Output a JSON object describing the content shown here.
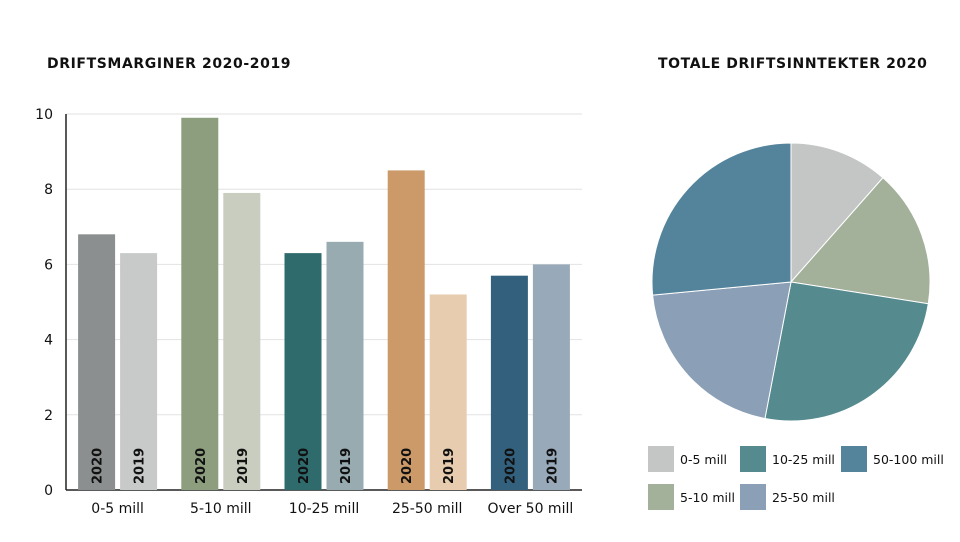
{
  "chart_data": [
    {
      "type": "bar",
      "title": "DRIFTSMARGINER 2020-2019",
      "categories": [
        "0-5 mill",
        "5-10 mill",
        "10-25 mill",
        "25-50 mill",
        "Over 50 mill"
      ],
      "series": [
        {
          "name": "2020",
          "values": [
            6.8,
            9.9,
            6.3,
            8.5,
            5.7
          ],
          "colors": [
            "#8c8f8f",
            "#8c9e7e",
            "#2f6a6c",
            "#cc9a68",
            "#33617d"
          ]
        },
        {
          "name": "2019",
          "values": [
            6.3,
            7.9,
            6.6,
            5.2,
            6.0
          ],
          "colors": [
            "#c8c9c9",
            "#c9cdbf",
            "#97abb0",
            "#e8ccb0",
            "#98a9b9"
          ]
        }
      ],
      "ylim": [
        0,
        10
      ],
      "yticks": [
        "0",
        "2",
        "4",
        "6",
        "8",
        "10"
      ],
      "grid": true
    },
    {
      "type": "pie",
      "title": "TOTALE DRIFTSINNTEKTER 2020",
      "labels": [
        "0-5 mill",
        "5-10 mill",
        "10-25 mill",
        "25-50 mill",
        "50-100 mill"
      ],
      "values": [
        11.5,
        16,
        25.5,
        20.5,
        26.5
      ],
      "colors": [
        "#c4c5c5",
        "#a3b09a",
        "#558a8e",
        "#8b9fb6",
        "#54849b"
      ],
      "legend": "bottom"
    }
  ]
}
